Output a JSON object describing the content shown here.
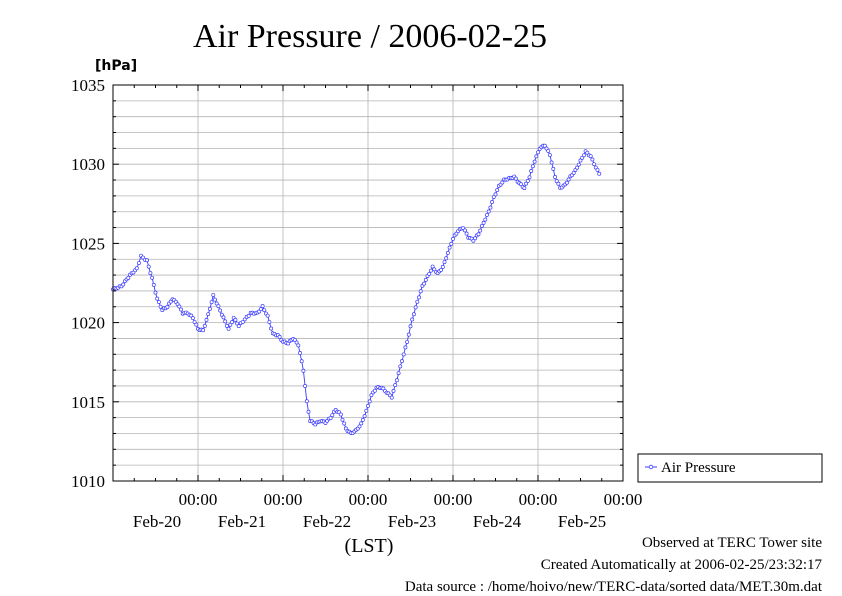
{
  "chart_data": {
    "type": "line",
    "title": "Air Pressure / 2006-02-25",
    "ylabel_unit": "[hPa]",
    "xlabel": "(LST)",
    "ylim": [
      1010,
      1035
    ],
    "yticks": [
      "1010",
      "1015",
      "1020",
      "1025",
      "1030",
      "1035"
    ],
    "grid": true,
    "xlim_days": [
      0,
      6
    ],
    "x_midnight_ticks": [
      {
        "time": "00:00",
        "day": "Feb-20"
      },
      {
        "time": "00:00",
        "day": "Feb-21"
      },
      {
        "time": "00:00",
        "day": "Feb-22"
      },
      {
        "time": "00:00",
        "day": "Feb-23"
      },
      {
        "time": "00:00",
        "day": "Feb-24"
      },
      {
        "time": "00:00",
        "day": "Feb-25"
      }
    ],
    "legend": {
      "position": "right",
      "entries": [
        "Air Pressure"
      ]
    },
    "series": [
      {
        "name": "Air Pressure",
        "color": "#3b3bff",
        "points": [
          [
            0.0,
            1022.1
          ],
          [
            0.1,
            1022.3
          ],
          [
            0.2,
            1023.0
          ],
          [
            0.28,
            1023.4
          ],
          [
            0.33,
            1024.2
          ],
          [
            0.4,
            1023.9
          ],
          [
            0.46,
            1022.8
          ],
          [
            0.52,
            1021.5
          ],
          [
            0.58,
            1020.8
          ],
          [
            0.64,
            1021.0
          ],
          [
            0.7,
            1021.5
          ],
          [
            0.76,
            1021.2
          ],
          [
            0.82,
            1020.6
          ],
          [
            0.88,
            1020.6
          ],
          [
            0.94,
            1020.3
          ],
          [
            1.0,
            1019.6
          ],
          [
            1.06,
            1019.5
          ],
          [
            1.12,
            1020.5
          ],
          [
            1.18,
            1021.7
          ],
          [
            1.24,
            1021.0
          ],
          [
            1.3,
            1020.3
          ],
          [
            1.36,
            1019.6
          ],
          [
            1.42,
            1020.3
          ],
          [
            1.48,
            1019.8
          ],
          [
            1.55,
            1020.2
          ],
          [
            1.62,
            1020.6
          ],
          [
            1.7,
            1020.6
          ],
          [
            1.76,
            1021.0
          ],
          [
            1.82,
            1020.4
          ],
          [
            1.88,
            1019.3
          ],
          [
            1.94,
            1019.2
          ],
          [
            2.0,
            1018.8
          ],
          [
            2.06,
            1018.7
          ],
          [
            2.12,
            1019.0
          ],
          [
            2.18,
            1018.6
          ],
          [
            2.24,
            1017.0
          ],
          [
            2.28,
            1015.0
          ],
          [
            2.32,
            1013.8
          ],
          [
            2.38,
            1013.6
          ],
          [
            2.44,
            1013.8
          ],
          [
            2.5,
            1013.7
          ],
          [
            2.56,
            1014.0
          ],
          [
            2.62,
            1014.5
          ],
          [
            2.68,
            1014.2
          ],
          [
            2.74,
            1013.3
          ],
          [
            2.8,
            1013.0
          ],
          [
            2.86,
            1013.2
          ],
          [
            2.92,
            1013.6
          ],
          [
            2.98,
            1014.4
          ],
          [
            3.04,
            1015.4
          ],
          [
            3.1,
            1015.9
          ],
          [
            3.16,
            1015.9
          ],
          [
            3.22,
            1015.6
          ],
          [
            3.28,
            1015.3
          ],
          [
            3.34,
            1016.4
          ],
          [
            3.4,
            1017.6
          ],
          [
            3.46,
            1018.8
          ],
          [
            3.52,
            1020.2
          ],
          [
            3.58,
            1021.3
          ],
          [
            3.64,
            1022.3
          ],
          [
            3.7,
            1022.9
          ],
          [
            3.76,
            1023.5
          ],
          [
            3.82,
            1023.1
          ],
          [
            3.88,
            1023.5
          ],
          [
            3.94,
            1024.4
          ],
          [
            4.0,
            1025.3
          ],
          [
            4.06,
            1025.8
          ],
          [
            4.12,
            1026.0
          ],
          [
            4.18,
            1025.4
          ],
          [
            4.24,
            1025.2
          ],
          [
            4.3,
            1025.6
          ],
          [
            4.36,
            1026.3
          ],
          [
            4.42,
            1027.0
          ],
          [
            4.48,
            1027.9
          ],
          [
            4.54,
            1028.6
          ],
          [
            4.6,
            1029.0
          ],
          [
            4.66,
            1029.1
          ],
          [
            4.72,
            1029.2
          ],
          [
            4.78,
            1028.8
          ],
          [
            4.84,
            1028.5
          ],
          [
            4.9,
            1029.2
          ],
          [
            4.96,
            1030.2
          ],
          [
            5.02,
            1031.0
          ],
          [
            5.08,
            1031.2
          ],
          [
            5.14,
            1030.6
          ],
          [
            5.2,
            1029.2
          ],
          [
            5.26,
            1028.5
          ],
          [
            5.32,
            1028.7
          ],
          [
            5.38,
            1029.2
          ],
          [
            5.44,
            1029.6
          ],
          [
            5.5,
            1030.2
          ],
          [
            5.56,
            1030.8
          ],
          [
            5.62,
            1030.5
          ],
          [
            5.68,
            1029.8
          ],
          [
            5.72,
            1029.4
          ]
        ]
      }
    ]
  },
  "footer": {
    "line1": "Observed at TERC Tower site",
    "line2": "Created Automatically at 2006-02-25/23:32:17",
    "line3": "Data source : /home/hoivo/new/TERC-data/sorted  data/MET.30m.dat"
  }
}
